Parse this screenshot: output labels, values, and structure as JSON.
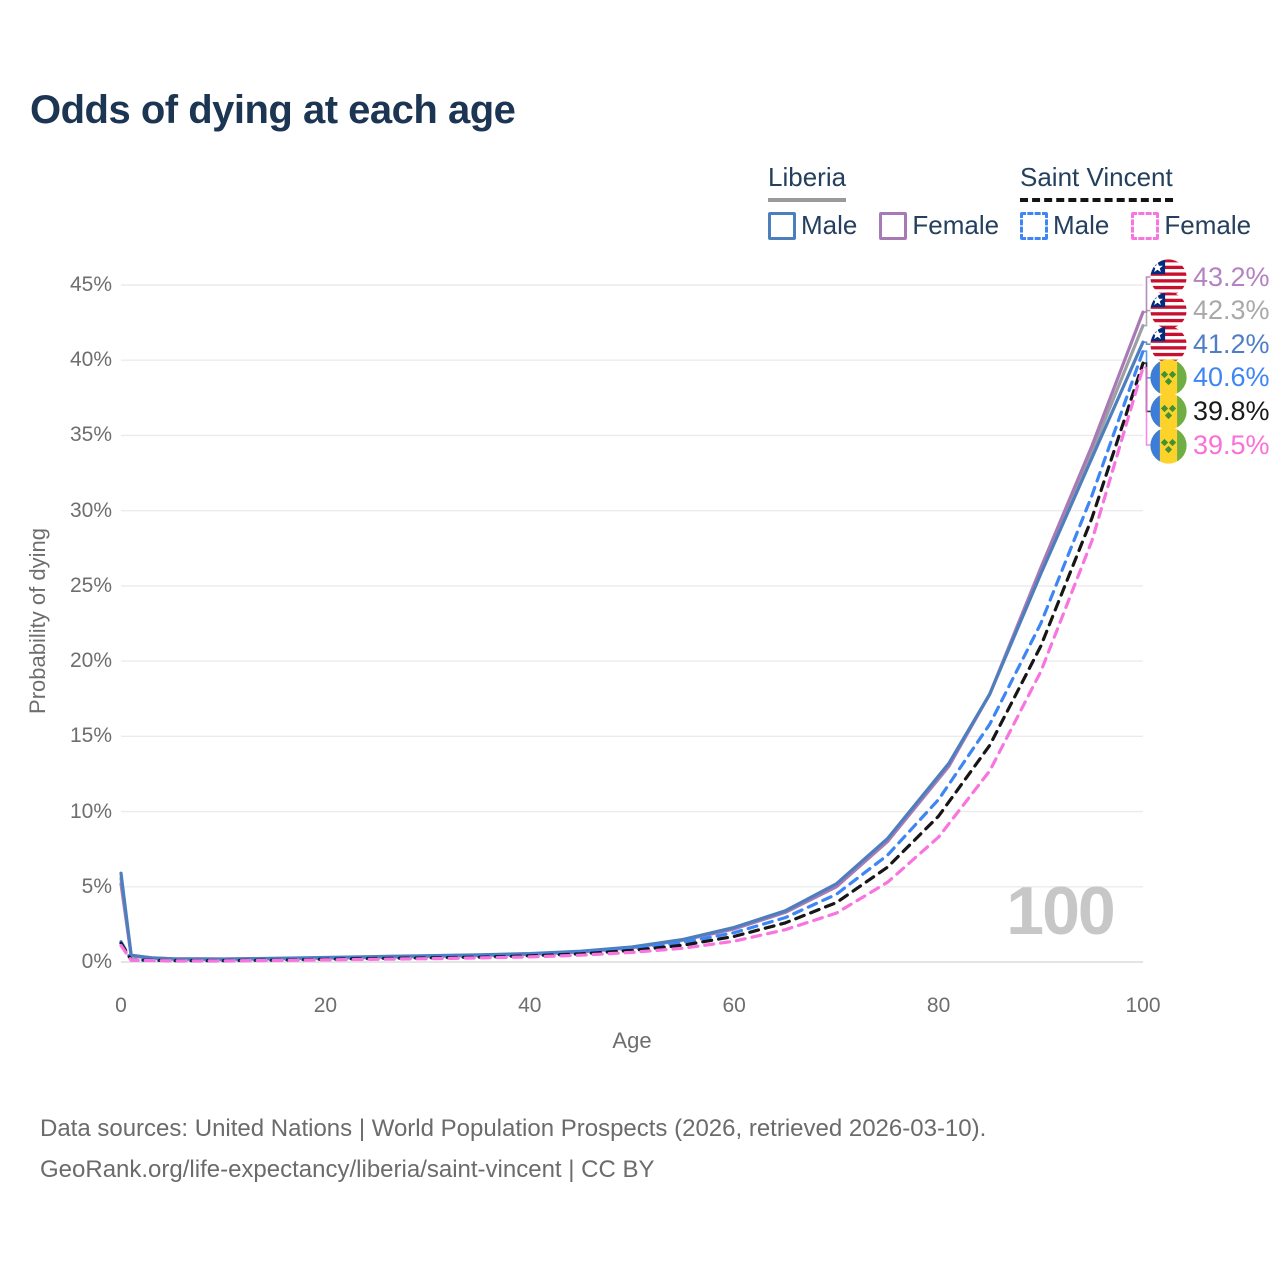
{
  "title": "Odds of dying at each age",
  "legend": {
    "groups": [
      {
        "name": "Liberia",
        "underline_color": "#9a9a9a",
        "underline_style": "solid",
        "items": [
          {
            "label": "Male",
            "color": "#4d7ebd",
            "style": "solid"
          },
          {
            "label": "Female",
            "color": "#a87ab5",
            "style": "solid"
          }
        ]
      },
      {
        "name": "Saint Vincent",
        "underline_color": "#141414",
        "underline_style": "dashed",
        "items": [
          {
            "label": "Male",
            "color": "#3f86f5",
            "style": "dashed"
          },
          {
            "label": "Female",
            "color": "#f875e0",
            "style": "dashed"
          }
        ]
      }
    ]
  },
  "chart_data": {
    "type": "line",
    "title": "Odds of dying at each age",
    "xlabel": "Age",
    "ylabel": "Probability of dying",
    "xlim": [
      0,
      100
    ],
    "ylim": [
      0,
      45
    ],
    "xticks": [
      0,
      20,
      40,
      60,
      80,
      100
    ],
    "yticks": [
      0,
      5,
      10,
      15,
      20,
      25,
      30,
      35,
      40,
      45
    ],
    "ytick_format": "percent",
    "grid": "horizontal",
    "legend_position": "top-right",
    "watermark": "100",
    "series": [
      {
        "id": "liberia-total",
        "name": "Liberia Total",
        "country": "liberia",
        "flag": "liberia",
        "color": "#9d9fa3",
        "dash": false,
        "end_label": "42.3%",
        "label_color": "#a9a9a9",
        "label_rank": 1,
        "points": [
          [
            0,
            5.55
          ],
          [
            1,
            0.43
          ],
          [
            3,
            0.27
          ],
          [
            5,
            0.21
          ],
          [
            10,
            0.19
          ],
          [
            15,
            0.23
          ],
          [
            20,
            0.28
          ],
          [
            25,
            0.34
          ],
          [
            30,
            0.4
          ],
          [
            35,
            0.46
          ],
          [
            40,
            0.54
          ],
          [
            45,
            0.69
          ],
          [
            50,
            0.98
          ],
          [
            55,
            1.48
          ],
          [
            60,
            2.25
          ],
          [
            65,
            3.35
          ],
          [
            70,
            5.1
          ],
          [
            75,
            8.1
          ],
          [
            81,
            13.1
          ],
          [
            85,
            17.8
          ],
          [
            90,
            26.0
          ],
          [
            95,
            33.9
          ],
          [
            100,
            42.3
          ]
        ]
      },
      {
        "id": "liberia-female",
        "name": "Liberia Female",
        "country": "liberia",
        "flag": "liberia",
        "color": "#a87ab5",
        "dash": false,
        "end_label": "43.2%",
        "label_color": "#b481c1",
        "label_rank": 0,
        "points": [
          [
            0,
            5.2
          ],
          [
            1,
            0.4
          ],
          [
            3,
            0.25
          ],
          [
            5,
            0.19
          ],
          [
            10,
            0.17
          ],
          [
            15,
            0.21
          ],
          [
            20,
            0.26
          ],
          [
            25,
            0.31
          ],
          [
            30,
            0.37
          ],
          [
            35,
            0.43
          ],
          [
            40,
            0.51
          ],
          [
            45,
            0.66
          ],
          [
            50,
            0.95
          ],
          [
            55,
            1.45
          ],
          [
            60,
            2.2
          ],
          [
            65,
            3.3
          ],
          [
            70,
            5.0
          ],
          [
            75,
            8.0
          ],
          [
            81,
            13.0
          ],
          [
            85,
            17.8
          ],
          [
            90,
            26.2
          ],
          [
            95,
            34.3
          ],
          [
            100,
            43.2
          ]
        ]
      },
      {
        "id": "liberia-male",
        "name": "Liberia Male",
        "country": "liberia",
        "flag": "liberia",
        "color": "#4d7ebd",
        "dash": false,
        "end_label": "41.2%",
        "label_color": "#4f7ec5",
        "label_rank": 2,
        "points": [
          [
            0,
            5.9
          ],
          [
            1,
            0.45
          ],
          [
            3,
            0.28
          ],
          [
            5,
            0.22
          ],
          [
            10,
            0.2
          ],
          [
            15,
            0.24
          ],
          [
            20,
            0.3
          ],
          [
            25,
            0.36
          ],
          [
            30,
            0.42
          ],
          [
            35,
            0.48
          ],
          [
            40,
            0.56
          ],
          [
            45,
            0.72
          ],
          [
            50,
            1.0
          ],
          [
            55,
            1.5
          ],
          [
            60,
            2.3
          ],
          [
            65,
            3.4
          ],
          [
            70,
            5.2
          ],
          [
            75,
            8.2
          ],
          [
            81,
            13.2
          ],
          [
            85,
            17.8
          ],
          [
            90,
            25.8
          ],
          [
            95,
            33.5
          ],
          [
            100,
            41.2
          ]
        ]
      },
      {
        "id": "saint-vincent-male",
        "name": "Saint Vincent Male",
        "country": "saint-vincent",
        "flag": "saint-vincent",
        "color": "#3f86f5",
        "dash": true,
        "end_label": "40.6%",
        "label_color": "#3f86f5",
        "label_rank": 3,
        "points": [
          [
            0,
            1.35
          ],
          [
            1,
            0.14
          ],
          [
            5,
            0.1
          ],
          [
            10,
            0.1
          ],
          [
            15,
            0.14
          ],
          [
            20,
            0.22
          ],
          [
            25,
            0.27
          ],
          [
            30,
            0.32
          ],
          [
            35,
            0.38
          ],
          [
            40,
            0.47
          ],
          [
            45,
            0.62
          ],
          [
            50,
            0.88
          ],
          [
            55,
            1.3
          ],
          [
            60,
            1.95
          ],
          [
            65,
            2.95
          ],
          [
            70,
            4.5
          ],
          [
            75,
            7.1
          ],
          [
            80,
            10.8
          ],
          [
            85,
            15.8
          ],
          [
            90,
            22.5
          ],
          [
            95,
            31.0
          ],
          [
            100,
            40.6
          ]
        ]
      },
      {
        "id": "saint-vincent-total",
        "name": "Saint Vincent Total",
        "country": "saint-vincent",
        "flag": "saint-vincent",
        "color": "#161616",
        "dash": true,
        "end_label": "39.8%",
        "label_color": "#1a1a1a",
        "label_rank": 4,
        "points": [
          [
            0,
            1.25
          ],
          [
            1,
            0.13
          ],
          [
            5,
            0.09
          ],
          [
            10,
            0.09
          ],
          [
            15,
            0.12
          ],
          [
            20,
            0.18
          ],
          [
            25,
            0.23
          ],
          [
            30,
            0.27
          ],
          [
            35,
            0.32
          ],
          [
            40,
            0.41
          ],
          [
            45,
            0.54
          ],
          [
            50,
            0.77
          ],
          [
            55,
            1.12
          ],
          [
            60,
            1.7
          ],
          [
            65,
            2.6
          ],
          [
            70,
            3.95
          ],
          [
            75,
            6.3
          ],
          [
            80,
            9.7
          ],
          [
            85,
            14.4
          ],
          [
            90,
            21.0
          ],
          [
            95,
            29.5
          ],
          [
            100,
            39.8
          ]
        ]
      },
      {
        "id": "saint-vincent-female",
        "name": "Saint Vincent Female",
        "country": "saint-vincent",
        "flag": "saint-vincent",
        "color": "#f875e0",
        "dash": true,
        "end_label": "39.5%",
        "label_color": "#fb6fd8",
        "label_rank": 5,
        "points": [
          [
            0,
            1.1
          ],
          [
            1,
            0.11
          ],
          [
            5,
            0.08
          ],
          [
            10,
            0.08
          ],
          [
            15,
            0.1
          ],
          [
            20,
            0.14
          ],
          [
            25,
            0.18
          ],
          [
            30,
            0.22
          ],
          [
            35,
            0.27
          ],
          [
            40,
            0.34
          ],
          [
            45,
            0.45
          ],
          [
            50,
            0.64
          ],
          [
            55,
            0.92
          ],
          [
            60,
            1.38
          ],
          [
            65,
            2.15
          ],
          [
            70,
            3.25
          ],
          [
            75,
            5.3
          ],
          [
            80,
            8.3
          ],
          [
            85,
            12.7
          ],
          [
            90,
            19.3
          ],
          [
            95,
            28.0
          ],
          [
            100,
            39.5
          ]
        ]
      }
    ]
  },
  "footer": {
    "line1": "Data sources: United Nations | World Population Prospects (2026, retrieved 2026-03-10).",
    "line2": "GeoRank.org/life-expectancy/liberia/saint-vincent | CC BY"
  }
}
